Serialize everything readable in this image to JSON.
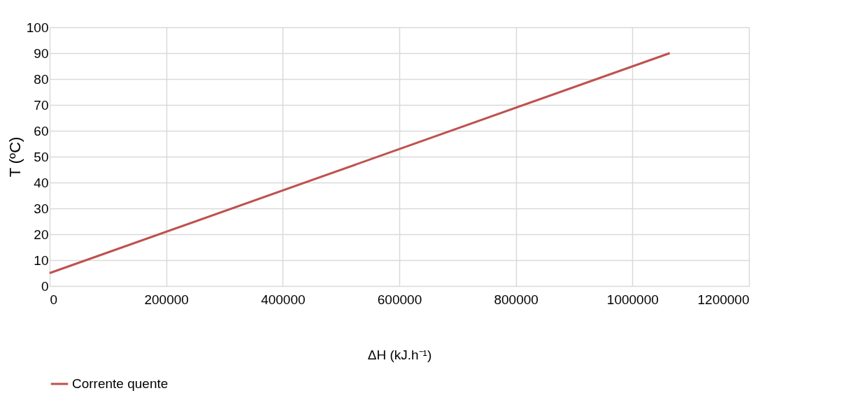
{
  "chart_data": {
    "type": "line",
    "xlabel": "ΔH (kJ.h⁻¹)",
    "ylabel": "T (ºC)",
    "series": [
      {
        "name": "Corrente quente",
        "color": "#c0504d",
        "x": [
          0,
          1064000
        ],
        "values": [
          5,
          90
        ]
      }
    ],
    "xlim": [
      0,
      1200000
    ],
    "xticks": [
      0,
      200000,
      400000,
      600000,
      800000,
      1000000,
      1200000
    ],
    "ylim": [
      0,
      100
    ],
    "yticks": [
      0,
      10,
      20,
      30,
      40,
      50,
      60,
      70,
      80,
      90,
      100
    ],
    "grid": true,
    "legend": "bottom",
    "marker": "none",
    "line_style": "solid"
  }
}
